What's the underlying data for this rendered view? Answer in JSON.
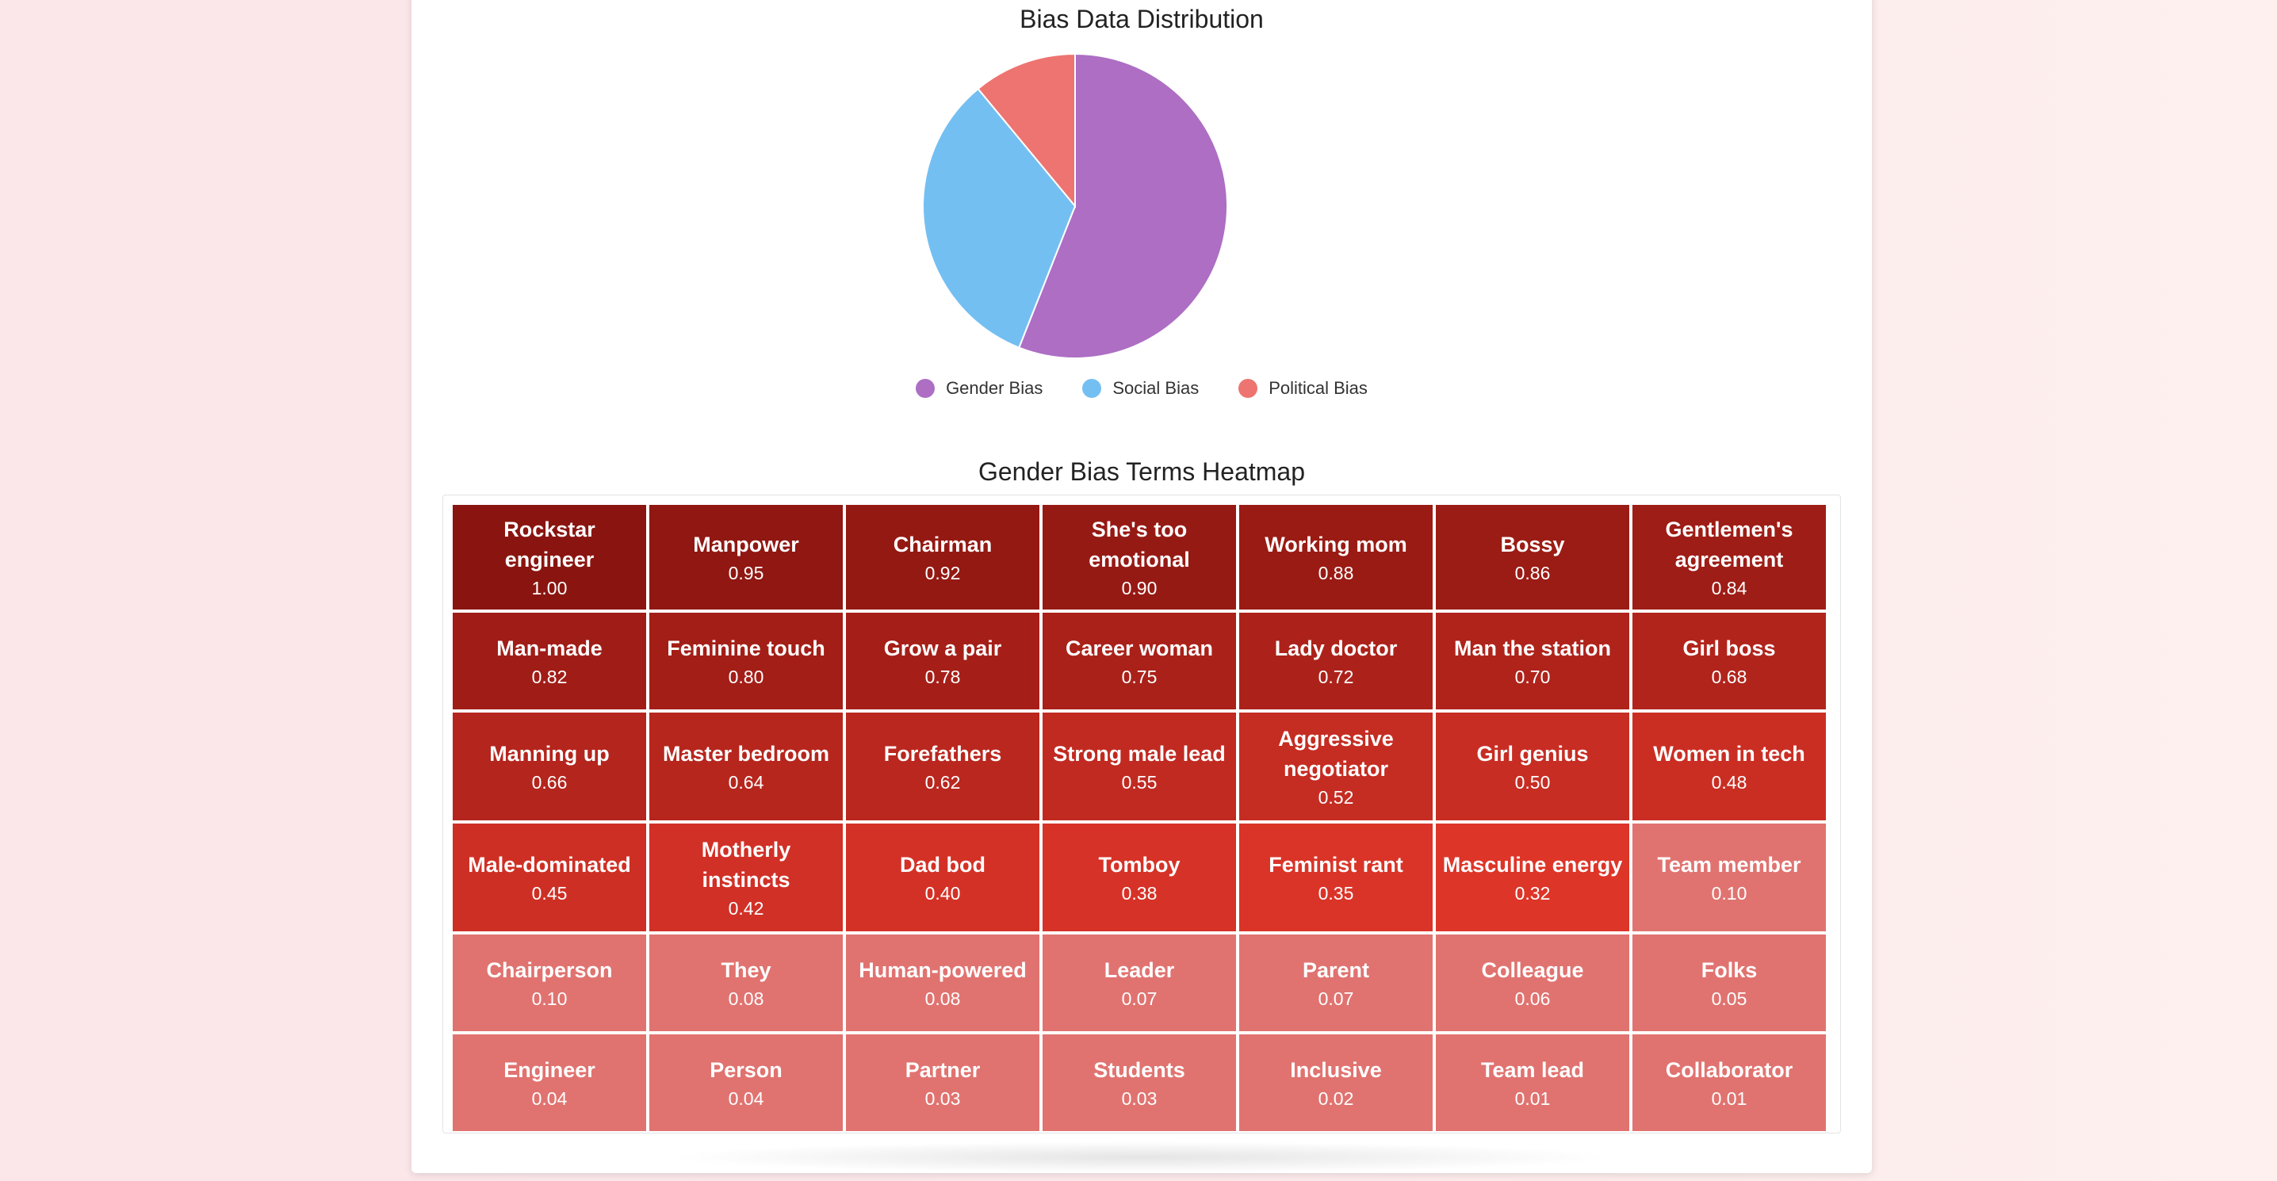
{
  "chart_data": [
    {
      "type": "pie",
      "title": "Bias Data Distribution",
      "labels": [
        "Gender Bias",
        "Social Bias",
        "Political Bias"
      ],
      "values": [
        56,
        33,
        11
      ],
      "colors": [
        "#ad6ec4",
        "#74bff2",
        "#ed7470"
      ],
      "legend_position": "bottom"
    },
    {
      "type": "heatmap",
      "title": "Gender Bias Terms Heatmap",
      "cells": [
        {
          "term": "Rockstar engineer",
          "score": "1.00"
        },
        {
          "term": "Manpower",
          "score": "0.95"
        },
        {
          "term": "Chairman",
          "score": "0.92"
        },
        {
          "term": "She's too emotional",
          "score": "0.90"
        },
        {
          "term": "Working mom",
          "score": "0.88"
        },
        {
          "term": "Bossy",
          "score": "0.86"
        },
        {
          "term": "Gentlemen's agreement",
          "score": "0.84"
        },
        {
          "term": "Man-made",
          "score": "0.82"
        },
        {
          "term": "Feminine touch",
          "score": "0.80"
        },
        {
          "term": "Grow a pair",
          "score": "0.78"
        },
        {
          "term": "Career woman",
          "score": "0.75"
        },
        {
          "term": "Lady doctor",
          "score": "0.72"
        },
        {
          "term": "Man the station",
          "score": "0.70"
        },
        {
          "term": "Girl boss",
          "score": "0.68"
        },
        {
          "term": "Manning up",
          "score": "0.66"
        },
        {
          "term": "Master bedroom",
          "score": "0.64"
        },
        {
          "term": "Forefathers",
          "score": "0.62"
        },
        {
          "term": "Strong male lead",
          "score": "0.55"
        },
        {
          "term": "Aggressive negotiator",
          "score": "0.52"
        },
        {
          "term": "Girl genius",
          "score": "0.50"
        },
        {
          "term": "Women in tech",
          "score": "0.48"
        },
        {
          "term": "Male-dominated",
          "score": "0.45"
        },
        {
          "term": "Motherly instincts",
          "score": "0.42"
        },
        {
          "term": "Dad bod",
          "score": "0.40"
        },
        {
          "term": "Tomboy",
          "score": "0.38"
        },
        {
          "term": "Feminist rant",
          "score": "0.35"
        },
        {
          "term": "Masculine energy",
          "score": "0.32"
        },
        {
          "term": "Team member",
          "score": "0.10"
        },
        {
          "term": "Chairperson",
          "score": "0.10"
        },
        {
          "term": "They",
          "score": "0.08"
        },
        {
          "term": "Human-powered",
          "score": "0.08"
        },
        {
          "term": "Leader",
          "score": "0.07"
        },
        {
          "term": "Parent",
          "score": "0.07"
        },
        {
          "term": "Colleague",
          "score": "0.06"
        },
        {
          "term": "Folks",
          "score": "0.05"
        },
        {
          "term": "Engineer",
          "score": "0.04"
        },
        {
          "term": "Person",
          "score": "0.04"
        },
        {
          "term": "Partner",
          "score": "0.03"
        },
        {
          "term": "Students",
          "score": "0.03"
        },
        {
          "term": "Inclusive",
          "score": "0.02"
        },
        {
          "term": "Team lead",
          "score": "0.01"
        },
        {
          "term": "Collaborator",
          "score": "0.01"
        }
      ],
      "color_scale": {
        "high": "#8a1510",
        "mid": "#e0362a",
        "low": "#e07370"
      }
    }
  ]
}
